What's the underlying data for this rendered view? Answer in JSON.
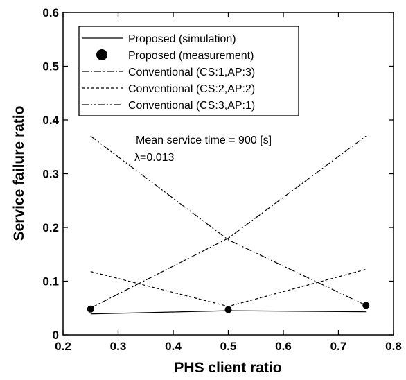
{
  "chart_data": {
    "type": "line",
    "xlabel": "PHS client ratio",
    "ylabel": "Service failure ratio",
    "xlim": [
      0.2,
      0.8
    ],
    "ylim": [
      0,
      0.6
    ],
    "xticks": [
      "0.2",
      "0.3",
      "0.4",
      "0.5",
      "0.6",
      "0.7",
      "0.8"
    ],
    "yticks": [
      "0",
      "0.1",
      "0.2",
      "0.3",
      "0.4",
      "0.5",
      "0.6"
    ],
    "grid": false,
    "legend_position": "top",
    "series": [
      {
        "name": "Proposed (simulation)",
        "style": "solid",
        "x": [
          0.25,
          0.5,
          0.75
        ],
        "y": [
          0.039,
          0.045,
          0.043
        ]
      },
      {
        "name": "Proposed (measurement)",
        "style": "marker",
        "x": [
          0.25,
          0.5,
          0.75
        ],
        "y": [
          0.048,
          0.047,
          0.055
        ]
      },
      {
        "name": "Conventional (CS:1,AP:3)",
        "style": "dashdot",
        "x": [
          0.25,
          0.5,
          0.75
        ],
        "y": [
          0.05,
          0.18,
          0.37
        ]
      },
      {
        "name": "Conventional (CS:2,AP:2)",
        "style": "dashed",
        "x": [
          0.25,
          0.5,
          0.75
        ],
        "y": [
          0.118,
          0.053,
          0.122
        ]
      },
      {
        "name": "Conventional (CS:3,AP:1)",
        "style": "dashdotdot",
        "x": [
          0.25,
          0.5,
          0.75
        ],
        "y": [
          0.37,
          0.177,
          0.055
        ]
      }
    ],
    "annotations": [
      "Mean service time = 900 [s]",
      "λ=0.013"
    ]
  }
}
